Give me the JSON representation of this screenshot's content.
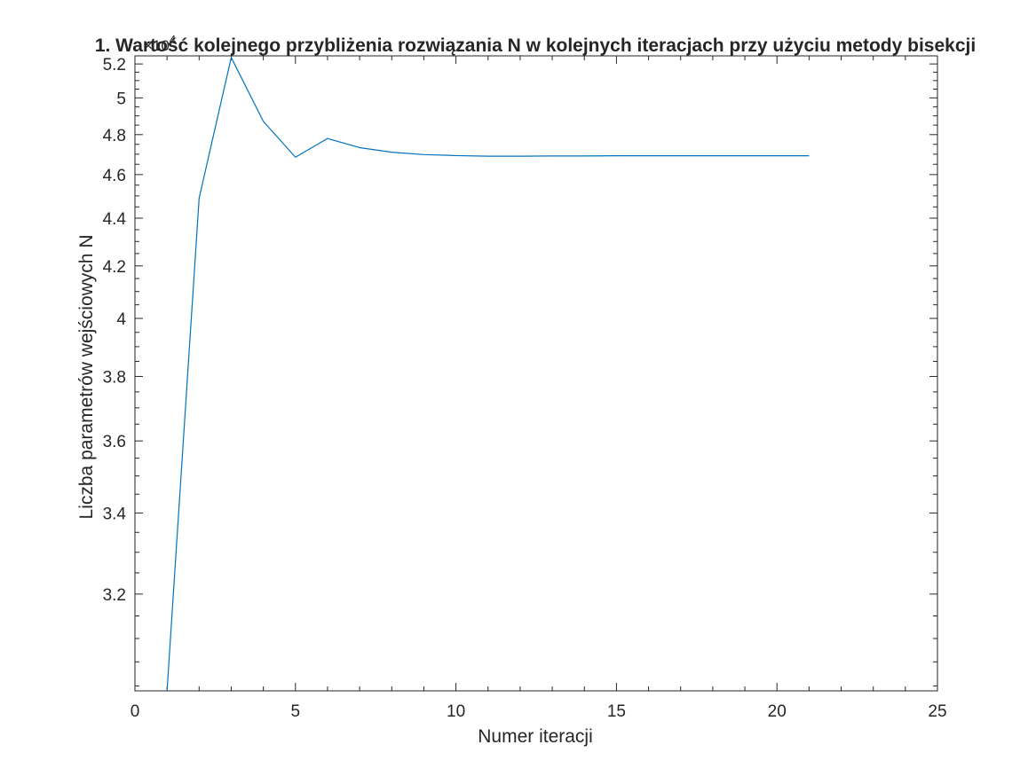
{
  "chart_data": {
    "type": "line",
    "title": "1. Wartość kolejnego przybliżenia rozwiązania N w kolejnych iteracjach przy użyciu metody bisekcji",
    "xlabel": "Numer iteracji",
    "ylabel": "Liczba parametrów wejściowych N",
    "y_exponent_label": "×10",
    "y_exponent": "4",
    "xlim": [
      0,
      25
    ],
    "ylim": [
      29900,
      52500
    ],
    "y_scale": "reciprocal",
    "grid": false,
    "x_ticks": [
      0,
      5,
      10,
      15,
      20,
      25
    ],
    "x_tick_labels": [
      "0",
      "5",
      "10",
      "15",
      "20",
      "25"
    ],
    "y_ticks": [
      32000,
      34000,
      36000,
      38000,
      40000,
      42000,
      44000,
      46000,
      48000,
      50000,
      52000
    ],
    "y_tick_labels": [
      "3.2",
      "3.4",
      "3.6",
      "3.8",
      "4",
      "4.2",
      "4.4",
      "4.6",
      "4.8",
      "5",
      "5.2"
    ],
    "series": [
      {
        "color": "#0072BD",
        "x": [
          1,
          2,
          3,
          4,
          5,
          6,
          7,
          8,
          9,
          10,
          11,
          12,
          13,
          14,
          15,
          16,
          17,
          18,
          19,
          20,
          21
        ],
        "y": [
          29900,
          44900,
          52400,
          48700,
          46850,
          47800,
          47330,
          47100,
          46980,
          46930,
          46900,
          46900,
          46910,
          46910,
          46920,
          46920,
          46920,
          46920,
          46920,
          46920,
          46920
        ]
      }
    ]
  }
}
